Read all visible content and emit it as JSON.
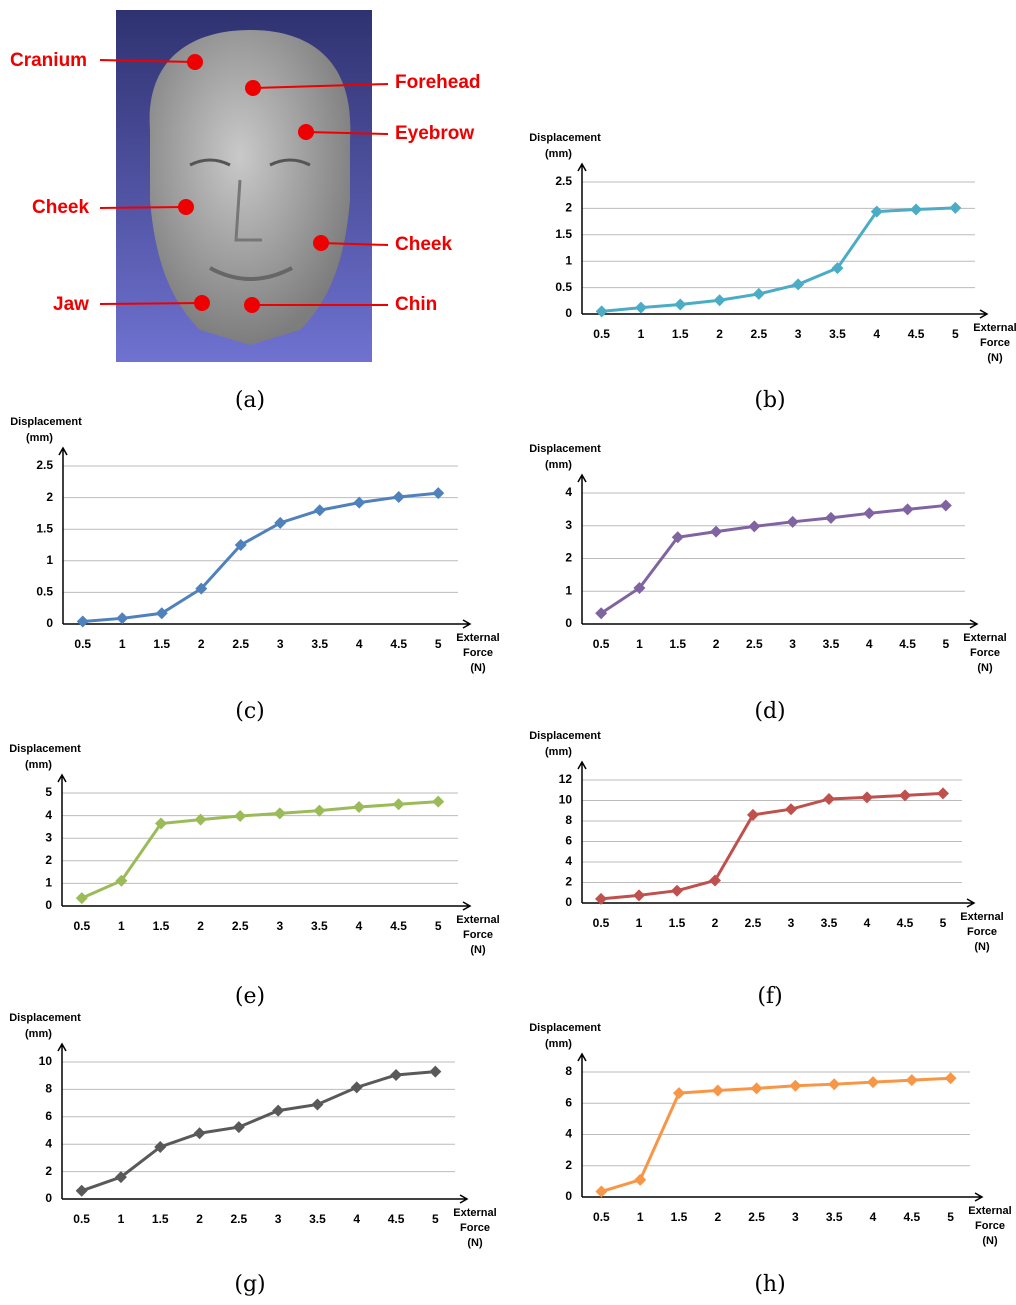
{
  "panel_a": {
    "labels": [
      "Cranium",
      "Forehead",
      "Eyebrow",
      "Cheek",
      "Cheek",
      "Jaw",
      "Chin"
    ],
    "caption": "(a)"
  },
  "chart_data": [
    {
      "type": "line",
      "caption": "(b)",
      "y_label": [
        "Displacement",
        "(mm)"
      ],
      "x_label": [
        "External",
        "Force",
        "(N)"
      ],
      "color": "#4bacc6",
      "x": [
        0.5,
        1,
        1.5,
        2,
        2.5,
        3,
        3.5,
        4,
        4.5,
        5
      ],
      "values": [
        0.05,
        0.12,
        0.18,
        0.26,
        0.38,
        0.56,
        0.87,
        1.94,
        1.98,
        2.01
      ],
      "xlim": [
        0.25,
        5.25
      ],
      "xticks": [
        0.5,
        1,
        1.5,
        2,
        2.5,
        3,
        3.5,
        4,
        4.5,
        5
      ],
      "ylim": [
        0,
        2.5
      ],
      "yticks": [
        0,
        0.5,
        1,
        1.5,
        2,
        2.5
      ],
      "grid": true
    },
    {
      "type": "line",
      "caption": "(c)",
      "y_label": [
        "Displacement",
        "(mm)"
      ],
      "x_label": [
        "External",
        "Force",
        "(N)"
      ],
      "color": "#4f81bd",
      "x": [
        0.5,
        1,
        1.5,
        2,
        2.5,
        3,
        3.5,
        4,
        4.5,
        5
      ],
      "values": [
        0.04,
        0.09,
        0.17,
        0.56,
        1.25,
        1.6,
        1.8,
        1.92,
        2.01,
        2.07
      ],
      "xlim": [
        0.25,
        5.25
      ],
      "xticks": [
        0.5,
        1,
        1.5,
        2,
        2.5,
        3,
        3.5,
        4,
        4.5,
        5
      ],
      "ylim": [
        0,
        2.5
      ],
      "yticks": [
        0,
        0.5,
        1,
        1.5,
        2,
        2.5
      ],
      "grid": true
    },
    {
      "type": "line",
      "caption": "(d)",
      "y_label": [
        "Displacement",
        "(mm)"
      ],
      "x_label": [
        "External",
        "Force",
        "(N)"
      ],
      "color": "#8064a2",
      "x": [
        0.5,
        1,
        1.5,
        2,
        2.5,
        3,
        3.5,
        4,
        4.5,
        5
      ],
      "values": [
        0.33,
        1.1,
        2.65,
        2.82,
        2.98,
        3.12,
        3.24,
        3.38,
        3.5,
        3.62
      ],
      "xlim": [
        0.25,
        5.25
      ],
      "xticks": [
        0.5,
        1,
        1.5,
        2,
        2.5,
        3,
        3.5,
        4,
        4.5,
        5
      ],
      "ylim": [
        0,
        4
      ],
      "yticks": [
        0,
        1,
        2,
        3,
        4
      ],
      "grid": true
    },
    {
      "type": "line",
      "caption": "(e)",
      "y_label": [
        "Displacement",
        "(mm)"
      ],
      "x_label": [
        "External",
        "Force",
        "(N)"
      ],
      "color": "#9bbb59",
      "x": [
        0.5,
        1,
        1.5,
        2,
        2.5,
        3,
        3.5,
        4,
        4.5,
        5
      ],
      "values": [
        0.35,
        1.12,
        3.65,
        3.82,
        3.98,
        4.1,
        4.22,
        4.38,
        4.5,
        4.62
      ],
      "xlim": [
        0.25,
        5.25
      ],
      "xticks": [
        0.5,
        1,
        1.5,
        2,
        2.5,
        3,
        3.5,
        4,
        4.5,
        5
      ],
      "ylim": [
        0,
        5
      ],
      "yticks": [
        0,
        1,
        2,
        3,
        4,
        5
      ],
      "grid": true
    },
    {
      "type": "line",
      "caption": "(f)",
      "y_label": [
        "Displacement",
        "(mm)"
      ],
      "x_label": [
        "External",
        "Force",
        "(N)"
      ],
      "color": "#c0504d",
      "x": [
        0.5,
        1,
        1.5,
        2,
        2.5,
        3,
        3.5,
        4,
        4.5,
        5
      ],
      "values": [
        0.4,
        0.75,
        1.2,
        2.2,
        8.6,
        9.15,
        10.15,
        10.3,
        10.5,
        10.7
      ],
      "xlim": [
        0.25,
        5.25
      ],
      "xticks": [
        0.5,
        1,
        1.5,
        2,
        2.5,
        3,
        3.5,
        4,
        4.5,
        5
      ],
      "ylim": [
        0,
        12
      ],
      "yticks": [
        0,
        2,
        4,
        6,
        8,
        10,
        12
      ],
      "grid": true
    },
    {
      "type": "line",
      "caption": "(g)",
      "y_label": [
        "Displacement",
        "(mm)"
      ],
      "x_label": [
        "External",
        "Force",
        "(N)"
      ],
      "color": "#595959",
      "x": [
        0.5,
        1,
        1.5,
        2,
        2.5,
        3,
        3.5,
        4,
        4.5,
        5
      ],
      "values": [
        0.6,
        1.6,
        3.8,
        4.8,
        5.25,
        6.45,
        6.9,
        8.15,
        9.05,
        9.3
      ],
      "xlim": [
        0.25,
        5.25
      ],
      "xticks": [
        0.5,
        1,
        1.5,
        2,
        2.5,
        3,
        3.5,
        4,
        4.5,
        5
      ],
      "ylim": [
        0,
        10
      ],
      "yticks": [
        0,
        2,
        4,
        6,
        8,
        10
      ],
      "grid": true
    },
    {
      "type": "line",
      "caption": "(h)",
      "y_label": [
        "Displacement",
        "(mm)"
      ],
      "x_label": [
        "External",
        "Force",
        "(N)"
      ],
      "color": "#f79646",
      "x": [
        0.5,
        1,
        1.5,
        2,
        2.5,
        3,
        3.5,
        4,
        4.5,
        5
      ],
      "values": [
        0.35,
        1.1,
        6.65,
        6.82,
        6.95,
        7.12,
        7.22,
        7.35,
        7.48,
        7.6
      ],
      "xlim": [
        0.25,
        5.25
      ],
      "xticks": [
        0.5,
        1,
        1.5,
        2,
        2.5,
        3,
        3.5,
        4,
        4.5,
        5
      ],
      "ylim": [
        0,
        8
      ],
      "yticks": [
        0,
        2,
        4,
        6,
        8
      ],
      "grid": true
    }
  ]
}
